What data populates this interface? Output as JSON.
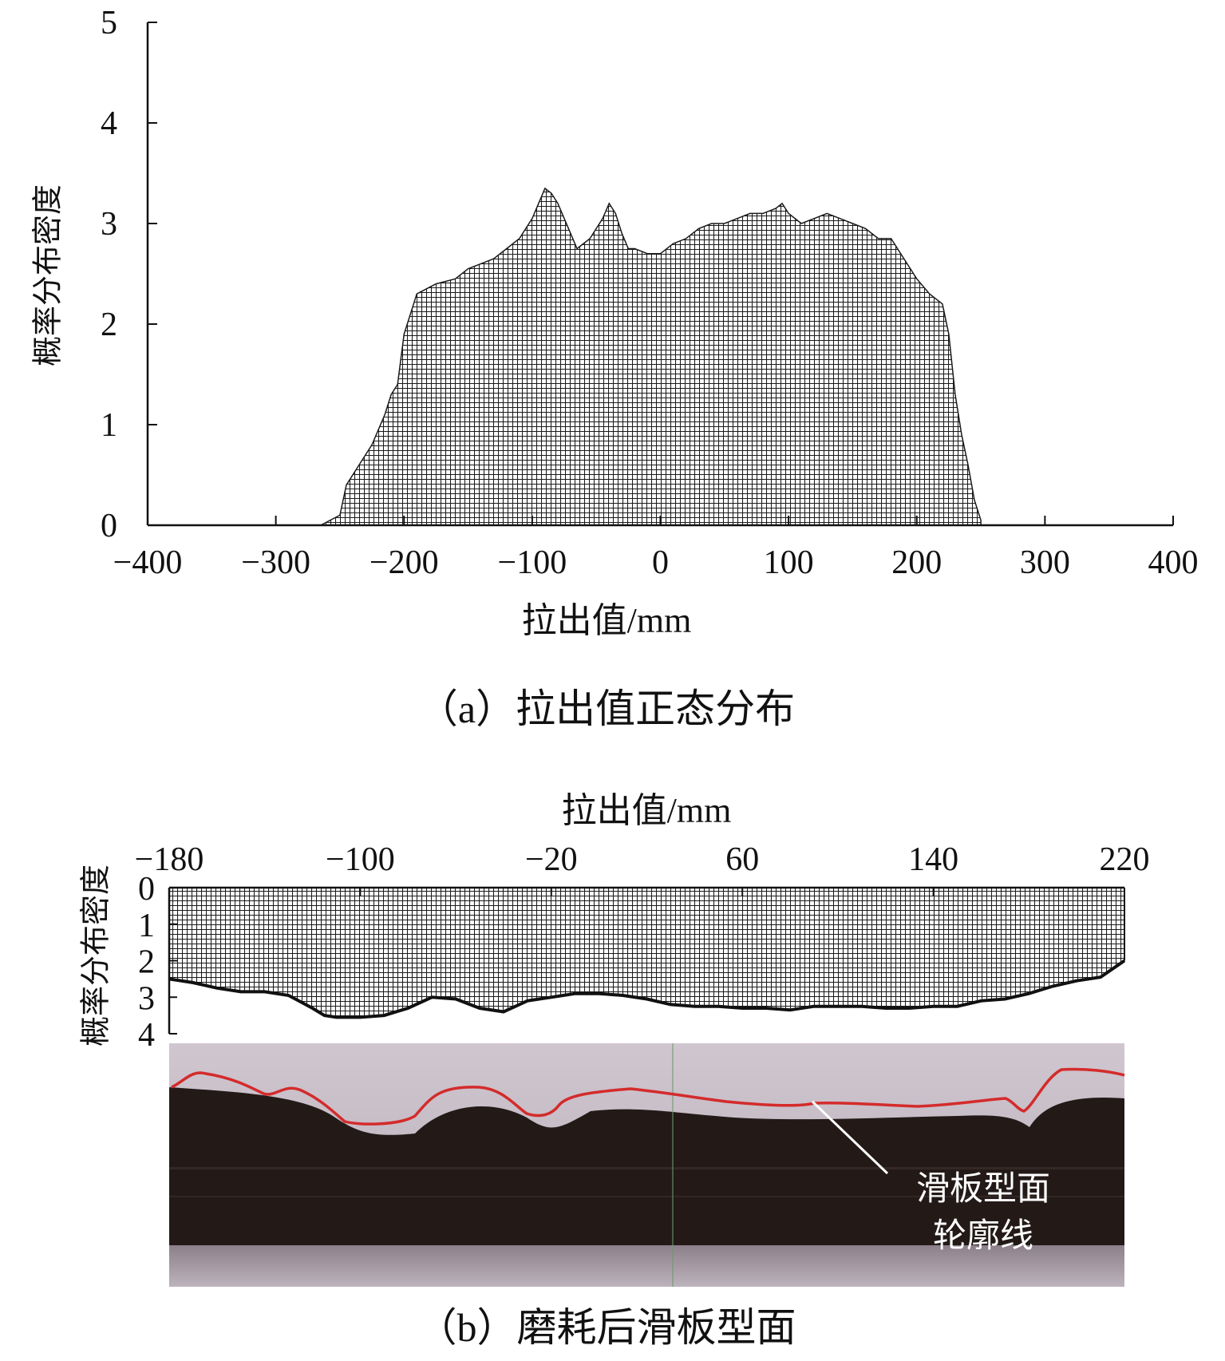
{
  "chart_data": [
    {
      "type": "area",
      "caption": "（a）拉出值正态分布",
      "xlabel": "拉出值/mm",
      "ylabel": "概率分布密度",
      "xlim": [
        -400,
        400
      ],
      "ylim": [
        0,
        5
      ],
      "xticks": [
        "−400",
        "−300",
        "−200",
        "−100",
        "0",
        "100",
        "200",
        "300",
        "400"
      ],
      "yticks": [
        "0",
        "1",
        "2",
        "3",
        "4",
        "5"
      ],
      "grid": false,
      "fill": "hatched crosshatch",
      "x": [
        -265,
        -250,
        -245,
        -235,
        -225,
        -215,
        -210,
        -205,
        -200,
        -195,
        -190,
        -175,
        -160,
        -150,
        -140,
        -130,
        -120,
        -110,
        -100,
        -95,
        -90,
        -85,
        -80,
        -75,
        -65,
        -55,
        -45,
        -40,
        -35,
        -30,
        -25,
        -20,
        -10,
        0,
        10,
        20,
        30,
        40,
        45,
        50,
        60,
        70,
        80,
        90,
        95,
        100,
        110,
        120,
        130,
        140,
        150,
        160,
        170,
        180,
        190,
        200,
        210,
        220,
        225,
        230,
        235,
        240,
        245,
        250
      ],
      "y": [
        0.0,
        0.1,
        0.4,
        0.6,
        0.8,
        1.1,
        1.3,
        1.4,
        1.9,
        2.1,
        2.3,
        2.4,
        2.45,
        2.55,
        2.6,
        2.65,
        2.75,
        2.85,
        3.05,
        3.2,
        3.35,
        3.3,
        3.2,
        3.05,
        2.75,
        2.85,
        3.05,
        3.2,
        3.1,
        2.9,
        2.75,
        2.75,
        2.7,
        2.7,
        2.8,
        2.85,
        2.95,
        3.0,
        3.0,
        3.0,
        3.05,
        3.1,
        3.1,
        3.15,
        3.2,
        3.1,
        3.0,
        3.05,
        3.1,
        3.05,
        3.0,
        2.95,
        2.85,
        2.85,
        2.65,
        2.45,
        2.3,
        2.2,
        1.9,
        1.3,
        0.9,
        0.6,
        0.25,
        0.05
      ]
    },
    {
      "type": "area",
      "caption": "（b）磨耗后滑板型面",
      "xlabel": "拉出值/mm",
      "ylabel": "概率分布密度",
      "xlim": [
        -180,
        220
      ],
      "ylim": [
        0,
        4
      ],
      "y_inverted": true,
      "x_axis_position": "top",
      "xticks": [
        "−180",
        "−100",
        "−20",
        "60",
        "140",
        "220"
      ],
      "yticks": [
        "0",
        "1",
        "2",
        "3",
        "4"
      ],
      "grid": false,
      "fill": "hatched crosshatch",
      "x": [
        -180,
        -170,
        -160,
        -150,
        -140,
        -130,
        -120,
        -115,
        -110,
        -100,
        -90,
        -80,
        -70,
        -60,
        -50,
        -40,
        -30,
        -25,
        -20,
        -15,
        -10,
        0,
        10,
        20,
        30,
        40,
        50,
        60,
        70,
        80,
        90,
        100,
        110,
        120,
        130,
        140,
        150,
        160,
        170,
        180,
        190,
        200,
        210,
        220
      ],
      "y": [
        2.5,
        2.6,
        2.75,
        2.85,
        2.85,
        2.95,
        3.3,
        3.5,
        3.55,
        3.55,
        3.5,
        3.3,
        3.0,
        3.05,
        3.3,
        3.4,
        3.1,
        3.05,
        3.0,
        2.95,
        2.9,
        2.9,
        2.95,
        3.05,
        3.2,
        3.25,
        3.25,
        3.3,
        3.3,
        3.35,
        3.25,
        3.25,
        3.25,
        3.3,
        3.3,
        3.25,
        3.25,
        3.1,
        3.05,
        2.9,
        2.7,
        2.55,
        2.45,
        2.0
      ]
    }
  ],
  "photo": {
    "label_line1": "滑板型面",
    "label_line2": "轮廓线",
    "contour_color": "#d42b2b"
  }
}
